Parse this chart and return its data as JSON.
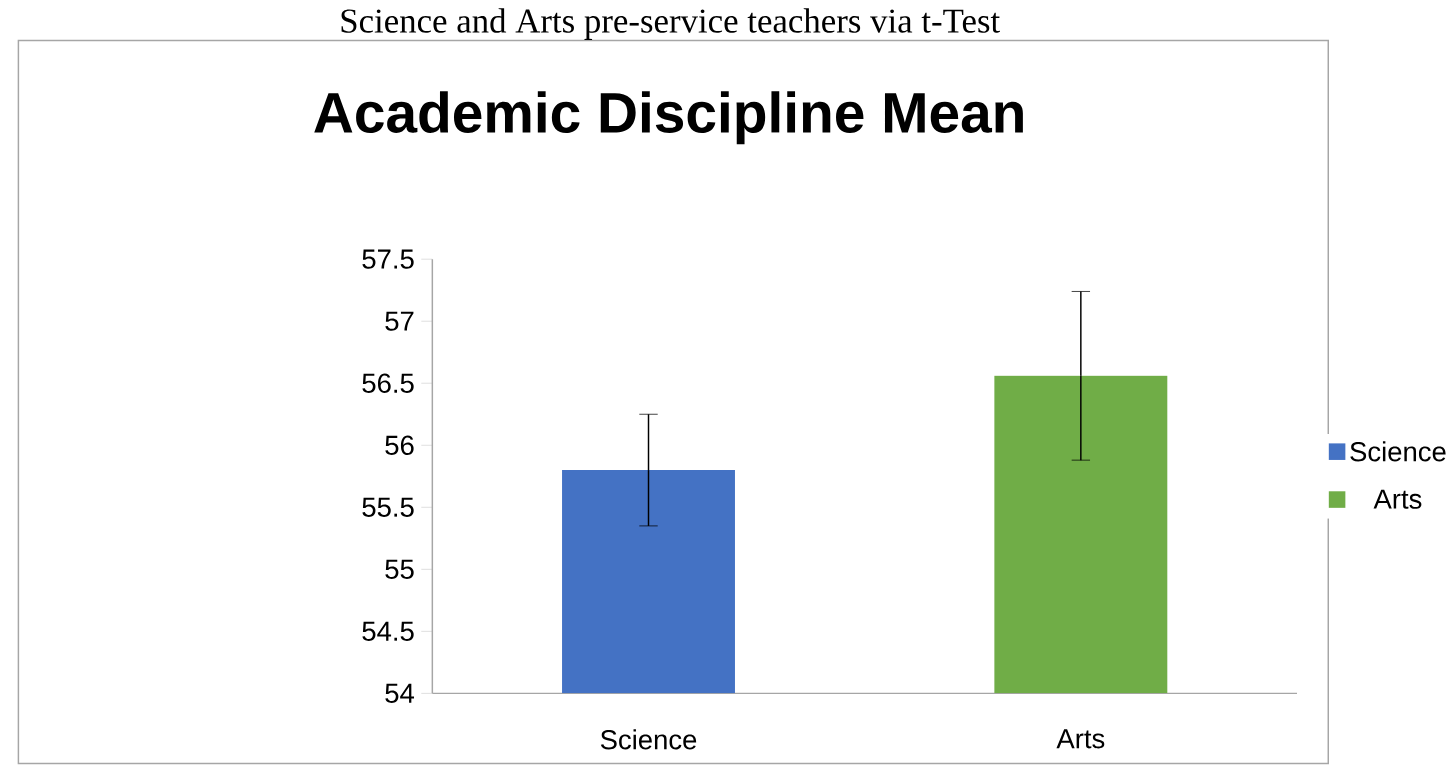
{
  "chart_data": {
    "type": "bar",
    "title": "Academic Discipline Mean",
    "annotations": [
      "Science and Arts pre-service teachers via t-Test"
    ],
    "categories": [
      "Science",
      "Arts"
    ],
    "series": [
      {
        "name": "Science",
        "color": "#4472c4",
        "values": [
          55.8,
          null
        ],
        "errors": [
          0.45,
          null
        ]
      },
      {
        "name": "Arts",
        "color": "#70ad47",
        "values": [
          null,
          56.56
        ],
        "errors": [
          null,
          0.68
        ]
      }
    ],
    "ylim": [
      54,
      57.5
    ],
    "yticks": [
      54,
      54.5,
      55,
      55.5,
      56,
      56.5,
      57,
      57.5
    ],
    "legend": "right",
    "grid": false
  }
}
